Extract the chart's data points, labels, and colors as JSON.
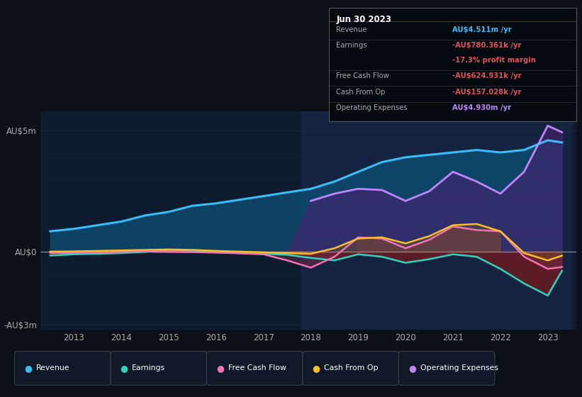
{
  "bg_color": "#0d1117",
  "plot_bg_color": "#0d1b2e",
  "grid_color": "#1e2d3d",
  "text_color": "#aaaaaa",
  "years": [
    2012.5,
    2013.0,
    2013.5,
    2014.0,
    2014.5,
    2015.0,
    2015.5,
    2016.0,
    2016.5,
    2017.0,
    2017.5,
    2018.0,
    2018.5,
    2019.0,
    2019.5,
    2020.0,
    2020.5,
    2021.0,
    2021.5,
    2022.0,
    2022.5,
    2023.0,
    2023.3
  ],
  "revenue": [
    0.85,
    0.95,
    1.1,
    1.25,
    1.5,
    1.65,
    1.9,
    2.0,
    2.15,
    2.3,
    2.45,
    2.6,
    2.9,
    3.3,
    3.7,
    3.9,
    4.0,
    4.1,
    4.2,
    4.1,
    4.2,
    4.6,
    4.511
  ],
  "earnings": [
    -0.15,
    -0.1,
    -0.08,
    -0.05,
    0.0,
    0.08,
    0.05,
    -0.02,
    -0.05,
    -0.08,
    -0.12,
    -0.25,
    -0.35,
    -0.1,
    -0.2,
    -0.45,
    -0.3,
    -0.1,
    -0.2,
    -0.7,
    -1.3,
    -1.8,
    -0.78
  ],
  "free_cash_flow": [
    -0.05,
    -0.04,
    -0.03,
    0.0,
    0.02,
    0.0,
    -0.01,
    -0.03,
    -0.06,
    -0.1,
    -0.35,
    -0.65,
    -0.2,
    0.6,
    0.55,
    0.15,
    0.5,
    1.05,
    0.9,
    0.85,
    -0.2,
    -0.7,
    -0.625
  ],
  "cash_from_op": [
    0.01,
    0.02,
    0.04,
    0.06,
    0.08,
    0.1,
    0.08,
    0.04,
    0.01,
    -0.02,
    -0.05,
    -0.08,
    0.15,
    0.55,
    0.6,
    0.35,
    0.65,
    1.1,
    1.15,
    0.85,
    -0.05,
    -0.35,
    -0.157
  ],
  "operating_expenses": [
    0.0,
    0.0,
    0.0,
    0.0,
    0.0,
    0.0,
    0.0,
    0.0,
    0.0,
    0.0,
    0.0,
    2.1,
    2.4,
    2.6,
    2.55,
    2.1,
    2.5,
    3.3,
    2.9,
    2.4,
    3.3,
    5.2,
    4.93
  ],
  "revenue_color": "#38bdf8",
  "earnings_color": "#2dd4bf",
  "fcf_color": "#f472b6",
  "cashop_color": "#fbbf24",
  "opex_color": "#c084fc",
  "revenue_fill": "#0e4a6e",
  "earnings_fill_neg": "#7b1a1a",
  "fcf_fill_pos": "#7b2d4e",
  "fcf_fill_neg": "#7b2d4e",
  "cashop_fill": "#7a5c10",
  "opex_fill": "#4a2070",
  "highlight_x_start": 2017.8,
  "highlight_x_end": 2023.5,
  "highlight_color": "#1a2a50",
  "ylim_min": -3.2,
  "ylim_max": 5.8,
  "xlim_min": 2012.3,
  "xlim_max": 2023.6,
  "ytick_vals": [
    -3,
    0,
    5
  ],
  "ytick_labels": [
    "-AU$3m",
    "AU$0",
    "AU$5m"
  ],
  "xticks": [
    2013,
    2014,
    2015,
    2016,
    2017,
    2018,
    2019,
    2020,
    2021,
    2022,
    2023
  ],
  "info_box": {
    "title": "Jun 30 2023",
    "rows": [
      {
        "label": "Revenue",
        "value": "AU$4.511m /yr",
        "value_color": "#38bdf8",
        "divider": true
      },
      {
        "label": "Earnings",
        "value": "-AU$780.361k /yr",
        "value_color": "#e05252",
        "divider": false
      },
      {
        "label": "",
        "value": "-17.3% profit margin",
        "value_color": "#e05252",
        "divider": true
      },
      {
        "label": "Free Cash Flow",
        "value": "-AU$624.931k /yr",
        "value_color": "#e05252",
        "divider": true
      },
      {
        "label": "Cash From Op",
        "value": "-AU$157.028k /yr",
        "value_color": "#e05252",
        "divider": true
      },
      {
        "label": "Operating Expenses",
        "value": "AU$4.930m /yr",
        "value_color": "#c084fc",
        "divider": false
      }
    ]
  },
  "legend_items": [
    {
      "label": "Revenue",
      "color": "#38bdf8"
    },
    {
      "label": "Earnings",
      "color": "#2dd4bf"
    },
    {
      "label": "Free Cash Flow",
      "color": "#f472b6"
    },
    {
      "label": "Cash From Op",
      "color": "#fbbf24"
    },
    {
      "label": "Operating Expenses",
      "color": "#c084fc"
    }
  ]
}
